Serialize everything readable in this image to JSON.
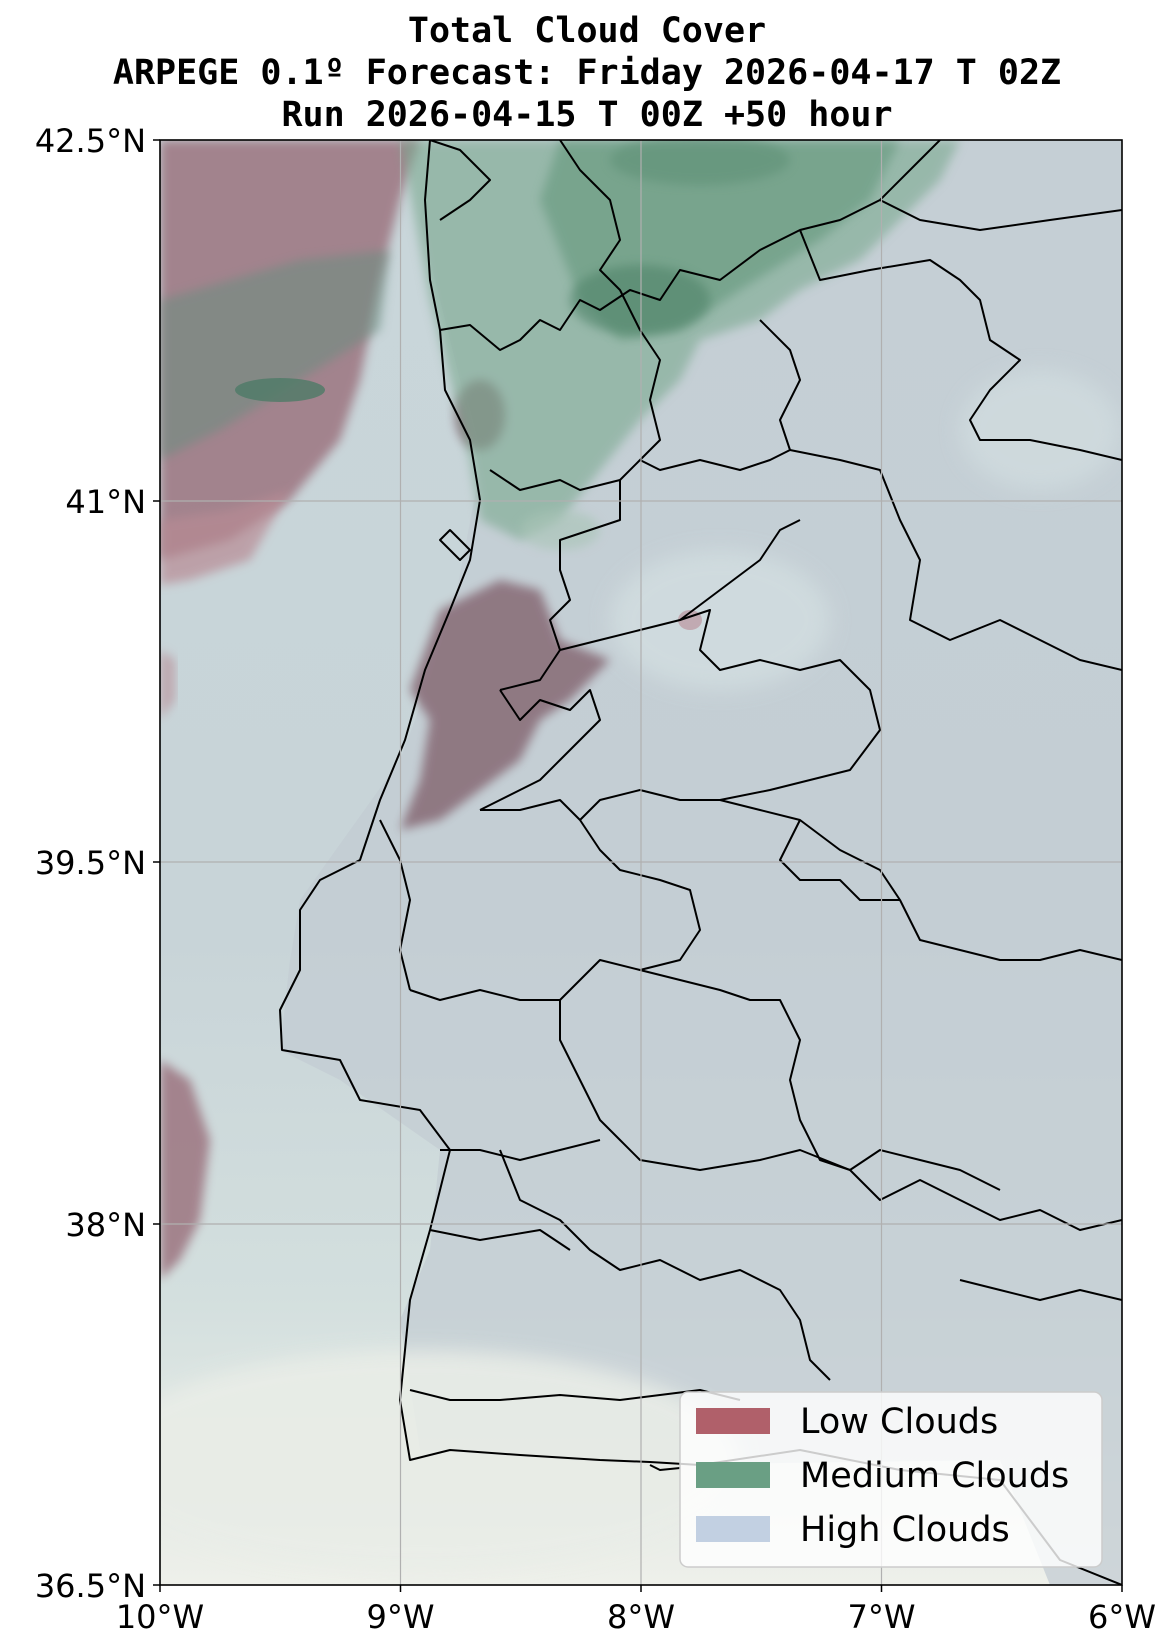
{
  "title": {
    "line1": "Total Cloud Cover",
    "line2": "ARPEGE 0.1º Forecast: Friday 2026-04-17 T 02Z",
    "line3": "Run 2026-04-15 T 00Z +50 hour"
  },
  "axes": {
    "lon_ticks": [
      "10°W",
      "9°W",
      "8°W",
      "7°W",
      "6°W"
    ],
    "lat_ticks": [
      "42.5°N",
      "41°N",
      "39.5°N",
      "38°N",
      "36.5°N"
    ],
    "lon_range": [
      -10,
      -6
    ],
    "lat_range": [
      36.5,
      42.5
    ],
    "grid": true
  },
  "legend": {
    "placement": "bottom-right",
    "items": [
      {
        "label": "Low Clouds",
        "color": "#b0606a"
      },
      {
        "label": "Medium Clouds",
        "color": "#6a9f84"
      },
      {
        "label": "High Clouds",
        "color": "#c2d0e2"
      }
    ]
  },
  "colors": {
    "low": "#a56a78",
    "medium": "#5e9a7a",
    "high": "#c6d1d8",
    "border": "#000000"
  }
}
